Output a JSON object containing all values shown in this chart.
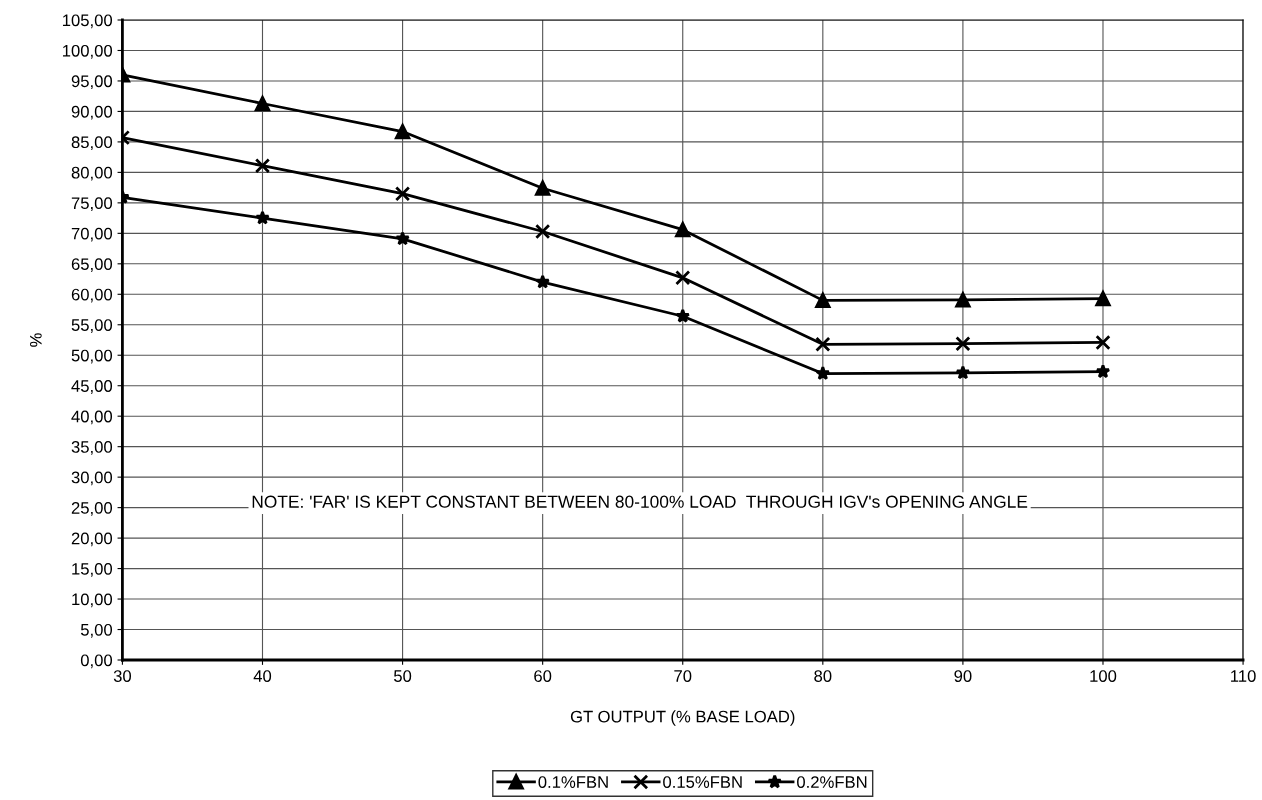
{
  "chart_data": {
    "type": "line",
    "xlabel": "GT OUTPUT (% BASE LOAD)",
    "ylabel": "%",
    "x": [
      30,
      40,
      50,
      60,
      70,
      80,
      90,
      100
    ],
    "series": [
      {
        "name": "0.1%FBN",
        "color": "#000000",
        "marker": "triangle",
        "values": [
          96.0,
          91.3,
          86.7,
          77.4,
          70.6,
          59.0,
          59.1,
          59.3
        ]
      },
      {
        "name": "0.15%FBN",
        "color": "#000000",
        "marker": "cross",
        "values": [
          85.7,
          81.1,
          76.5,
          70.3,
          62.7,
          51.8,
          51.9,
          52.1
        ]
      },
      {
        "name": "0.2%FBN",
        "color": "#000000",
        "marker": "star",
        "values": [
          75.9,
          72.5,
          69.1,
          62.0,
          56.4,
          47.0,
          47.1,
          47.3
        ]
      }
    ],
    "xlim": [
      30,
      110
    ],
    "xticks": [
      30,
      40,
      50,
      60,
      70,
      80,
      90,
      100,
      110
    ],
    "ylim": [
      0,
      105
    ],
    "yticks": [
      {
        "value": 0,
        "label": "0,00"
      },
      {
        "value": 5,
        "label": "5,00"
      },
      {
        "value": 10,
        "label": "10,00"
      },
      {
        "value": 15,
        "label": "15,00"
      },
      {
        "value": 20,
        "label": "20,00"
      },
      {
        "value": 25,
        "label": "25,00"
      },
      {
        "value": 30,
        "label": "30,00"
      },
      {
        "value": 35,
        "label": "35,00"
      },
      {
        "value": 40,
        "label": "40,00"
      },
      {
        "value": 45,
        "label": "45,00"
      },
      {
        "value": 50,
        "label": "50,00"
      },
      {
        "value": 55,
        "label": "55,00"
      },
      {
        "value": 60,
        "label": "60,00"
      },
      {
        "value": 65,
        "label": "65,00"
      },
      {
        "value": 70,
        "label": "70,00"
      },
      {
        "value": 75,
        "label": "75,00"
      },
      {
        "value": 80,
        "label": "80,00"
      },
      {
        "value": 85,
        "label": "85,00"
      },
      {
        "value": 90,
        "label": "90,00"
      },
      {
        "value": 95,
        "label": "95,00"
      },
      {
        "value": 100,
        "label": "100,00"
      },
      {
        "value": 105,
        "label": "105,00"
      }
    ],
    "annotations": [
      "NOTE: 'FAR' IS KEPT CONSTANT BETWEEN 80-100% LOAD  THROUGH IGV's OPENING ANGLE"
    ],
    "grid": true,
    "legend": "bottom",
    "line_style": "solid"
  }
}
